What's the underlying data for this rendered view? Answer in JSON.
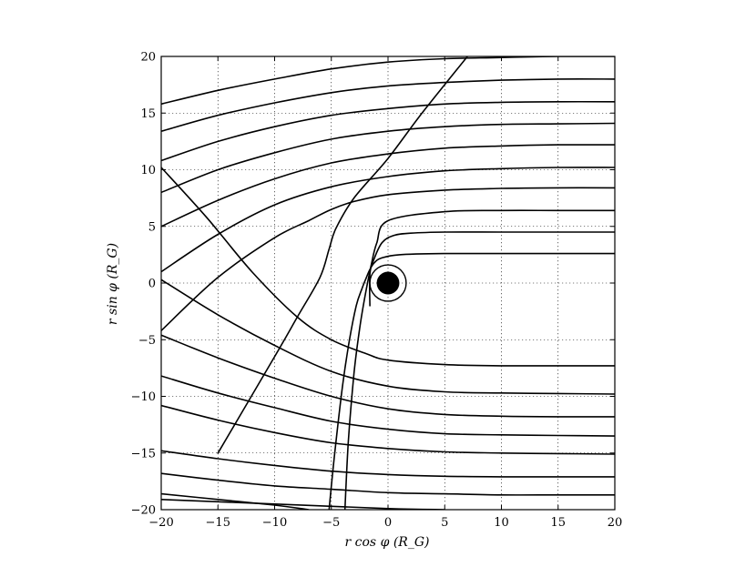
{
  "chart_data": {
    "type": "line",
    "title": "",
    "xlabel": "r cos φ (R_G)",
    "ylabel": "r sin φ (R_G)",
    "xlim": [
      -20,
      20
    ],
    "ylim": [
      -20,
      20
    ],
    "xticks": [
      -20,
      -15,
      -10,
      -5,
      0,
      5,
      10,
      15,
      20
    ],
    "yticks": [
      -20,
      -15,
      -10,
      -5,
      0,
      5,
      10,
      15,
      20
    ],
    "xtick_labels": [
      "−20",
      "−15",
      "−10",
      "−5",
      "0",
      "5",
      "10",
      "15",
      "20"
    ],
    "ytick_labels": [
      "−20",
      "−15",
      "−10",
      "−5",
      "0",
      "5",
      "10",
      "15",
      "20"
    ],
    "grid": true,
    "black_hole": {
      "center": [
        0,
        0
      ],
      "radius": 1.0,
      "ring_radius": 1.6,
      "color": "#000000"
    },
    "series": [
      {
        "x": [
          -20,
          -15,
          -10,
          -5,
          0,
          5,
          10,
          15,
          20
        ],
        "y": [
          15.8,
          17.0,
          18.0,
          18.9,
          19.5,
          19.8,
          19.9,
          20.0,
          20.0
        ]
      },
      {
        "x": [
          -20,
          -15,
          -10,
          -5,
          0,
          5,
          10,
          15,
          20
        ],
        "y": [
          13.4,
          14.8,
          15.9,
          16.8,
          17.4,
          17.7,
          17.9,
          18.0,
          18.0
        ]
      },
      {
        "x": [
          -20,
          -15,
          -10,
          -5,
          0,
          5,
          10,
          15,
          20
        ],
        "y": [
          10.8,
          12.5,
          13.8,
          14.8,
          15.4,
          15.8,
          15.95,
          16.0,
          16.0
        ]
      },
      {
        "x": [
          -20,
          -15,
          -10,
          -5,
          0,
          5,
          10,
          15,
          20
        ],
        "y": [
          8.0,
          10.0,
          11.5,
          12.7,
          13.4,
          13.8,
          14.0,
          14.05,
          14.1
        ]
      },
      {
        "x": [
          -20,
          -15,
          -10,
          -5,
          0,
          5,
          10,
          15,
          20
        ],
        "y": [
          5.0,
          7.3,
          9.2,
          10.6,
          11.4,
          11.9,
          12.1,
          12.2,
          12.2
        ]
      },
      {
        "x": [
          -20,
          -15,
          -10,
          -5,
          0,
          5,
          10,
          15,
          20
        ],
        "y": [
          1.0,
          4.3,
          6.9,
          8.5,
          9.4,
          9.9,
          10.1,
          10.2,
          10.2
        ]
      },
      {
        "x": [
          -20,
          -15,
          -10,
          -7,
          -5,
          -3,
          0,
          5,
          10,
          15,
          20
        ],
        "y": [
          -4.2,
          0.5,
          4.0,
          5.5,
          6.5,
          7.2,
          7.8,
          8.2,
          8.35,
          8.4,
          8.4
        ]
      },
      {
        "x": [
          -3.8,
          -3.5,
          -3.0,
          -2.5,
          -2.0,
          -1.5,
          -1.0,
          0,
          5,
          10,
          15,
          20
        ],
        "y": [
          -20,
          -14,
          -8,
          -4,
          -1.0,
          1.5,
          3.5,
          5.5,
          6.3,
          6.4,
          6.4,
          6.4
        ]
      },
      {
        "x": [
          -1.6,
          -1.6,
          -1.2,
          -0.5,
          0.5,
          2,
          5,
          10,
          15,
          20
        ],
        "y": [
          -2.0,
          0.8,
          2.2,
          3.6,
          4.2,
          4.4,
          4.5,
          4.5,
          4.5,
          4.5
        ]
      },
      {
        "x": [
          -5.2,
          -4.7,
          -4.0,
          -3.4,
          -2.8,
          -2.3,
          -1.9,
          -1.6,
          -1.2,
          -0.6,
          1.0,
          5,
          10,
          15,
          20
        ],
        "y": [
          -20,
          -15,
          -9,
          -5,
          -2.0,
          -0.5,
          0.5,
          1.2,
          1.8,
          2.2,
          2.5,
          2.6,
          2.6,
          2.6,
          2.6
        ]
      },
      {
        "x": [
          -15,
          -10,
          -8,
          -6,
          -5.2,
          -4.6,
          -3.0,
          0,
          3,
          7
        ],
        "y": [
          -15,
          -6.5,
          -3,
          0.5,
          3.0,
          4.8,
          7.5,
          11.0,
          15.0,
          20.0
        ]
      },
      {
        "x": [
          -20,
          -16,
          -12,
          -8,
          -5,
          -2,
          0,
          5,
          10,
          15,
          20
        ],
        "y": [
          10.2,
          5.8,
          1.0,
          -3.0,
          -5.0,
          -6.2,
          -6.8,
          -7.2,
          -7.3,
          -7.3,
          -7.3
        ]
      },
      {
        "x": [
          -20,
          -15,
          -10,
          -5,
          0,
          5,
          10,
          15,
          20
        ],
        "y": [
          0.3,
          -2.8,
          -5.5,
          -7.8,
          -9.1,
          -9.6,
          -9.7,
          -9.75,
          -9.8
        ]
      },
      {
        "x": [
          -20,
          -15,
          -10,
          -5,
          0,
          5,
          10,
          15,
          20
        ],
        "y": [
          -4.6,
          -6.6,
          -8.4,
          -10.0,
          -11.1,
          -11.6,
          -11.75,
          -11.8,
          -11.8
        ]
      },
      {
        "x": [
          -20,
          -15,
          -10,
          -5,
          0,
          5,
          10,
          15,
          20
        ],
        "y": [
          -8.2,
          -9.7,
          -11.0,
          -12.2,
          -12.9,
          -13.3,
          -13.4,
          -13.45,
          -13.5
        ]
      },
      {
        "x": [
          -20,
          -15,
          -10,
          -5,
          0,
          5,
          10,
          15,
          20
        ],
        "y": [
          -10.8,
          -12.1,
          -13.2,
          -14.1,
          -14.6,
          -14.9,
          -15.0,
          -15.05,
          -15.1
        ]
      },
      {
        "x": [
          -20,
          -15,
          -10,
          -5,
          0,
          5,
          10,
          15,
          20
        ],
        "y": [
          -14.8,
          -15.5,
          -16.1,
          -16.6,
          -16.9,
          -17.05,
          -17.1,
          -17.1,
          -17.1
        ]
      },
      {
        "x": [
          -20,
          -15,
          -10,
          -5,
          0,
          5,
          10,
          15,
          20
        ],
        "y": [
          -16.8,
          -17.4,
          -17.9,
          -18.2,
          -18.5,
          -18.6,
          -18.7,
          -18.7,
          -18.7
        ]
      },
      {
        "x": [
          -20,
          -15,
          -10,
          -7
        ],
        "y": [
          -18.6,
          -19.1,
          -19.6,
          -20.0
        ]
      },
      {
        "x": [
          -20,
          -10,
          0,
          5
        ],
        "y": [
          -19.1,
          -19.5,
          -19.9,
          -20.0
        ]
      }
    ]
  }
}
